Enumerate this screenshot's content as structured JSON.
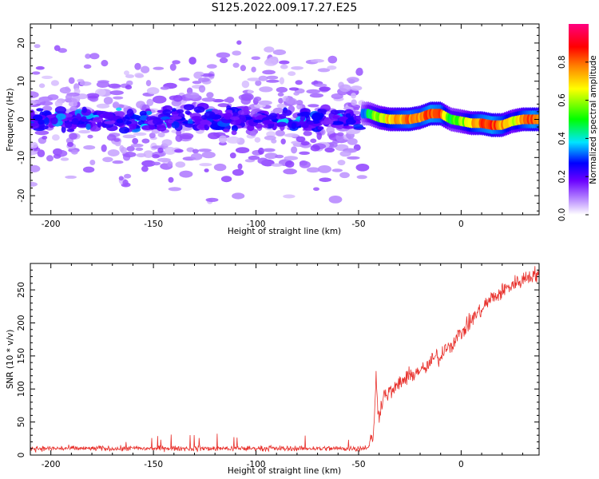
{
  "title": "S125.2022.009.17.27.E25",
  "chart_data": [
    {
      "type": "heatmap",
      "xlabel": "Height of straight line (km)",
      "ylabel": "Frequency (Hz)",
      "xlim": [
        -210,
        38
      ],
      "ylim": [
        -25,
        25
      ],
      "x_ticks": [
        -200,
        -150,
        -100,
        -50,
        0
      ],
      "y_ticks": [
        -20,
        -10,
        0,
        10,
        20
      ],
      "grid": false,
      "colormap": [
        "#ffffff",
        "#7a00ff",
        "#0000ff",
        "#00e5ff",
        "#00ff00",
        "#ffff00",
        "#ff8000",
        "#ff0000",
        "#ff0080"
      ],
      "colorbar": {
        "label": "Normalized spectral amplitude",
        "range": [
          0.0,
          1.0
        ],
        "ticks": [
          "0.0",
          "0.2",
          "0.4",
          "0.6",
          "0.8"
        ],
        "tick_values": [
          0.0,
          0.2,
          0.4,
          0.6,
          0.8
        ]
      },
      "noise_region": {
        "x_range": [
          -210,
          -48
        ],
        "freq_spread_hz": 25,
        "typical_amplitude": 0.15
      },
      "signal_ridge": {
        "x": [
          -48,
          -45,
          -40,
          -35,
          -30,
          -25,
          -20,
          -15,
          -10,
          -5,
          0,
          5,
          10,
          15,
          20,
          25,
          30,
          35,
          38
        ],
        "freq": [
          1.5,
          1.5,
          0.5,
          0,
          0,
          0,
          0.5,
          1.5,
          1.5,
          0,
          -0.5,
          -1,
          -1,
          -1.5,
          -1.5,
          -0.5,
          0,
          0,
          0
        ],
        "amplitude": [
          0.3,
          0.45,
          0.6,
          0.7,
          0.75,
          0.8,
          0.75,
          0.85,
          0.8,
          0.5,
          0.55,
          0.7,
          0.8,
          0.85,
          0.75,
          0.6,
          0.75,
          0.85,
          0.8
        ]
      }
    },
    {
      "type": "line",
      "xlabel": "Height of straight line (km)",
      "ylabel": "SNR (10 * v/v)",
      "xlim": [
        -210,
        38
      ],
      "ylim": [
        0,
        290
      ],
      "x_ticks": [
        -200,
        -150,
        -100,
        -50,
        0
      ],
      "y_ticks": [
        0,
        50,
        100,
        150,
        200,
        250
      ],
      "grid": false,
      "series": [
        {
          "color": "#e8312c",
          "x": [
            -210,
            -150,
            -100,
            -60,
            -50,
            -45,
            -43,
            -42,
            -41.5,
            -41,
            -40,
            -38,
            -35,
            -32,
            -30,
            -27,
            -25,
            -22,
            -20,
            -18,
            -15,
            -12,
            -10,
            -8,
            -5,
            -3,
            0,
            3,
            5,
            8,
            10,
            12,
            15,
            18,
            20,
            22,
            25,
            28,
            30,
            32,
            35,
            38
          ],
          "y": [
            10,
            10,
            10,
            10,
            10,
            12,
            30,
            70,
            120,
            85,
            60,
            90,
            95,
            100,
            110,
            115,
            120,
            125,
            130,
            128,
            140,
            150,
            145,
            165,
            165,
            175,
            185,
            195,
            205,
            215,
            220,
            228,
            238,
            242,
            248,
            252,
            258,
            262,
            265,
            270,
            272,
            275
          ]
        }
      ]
    }
  ]
}
